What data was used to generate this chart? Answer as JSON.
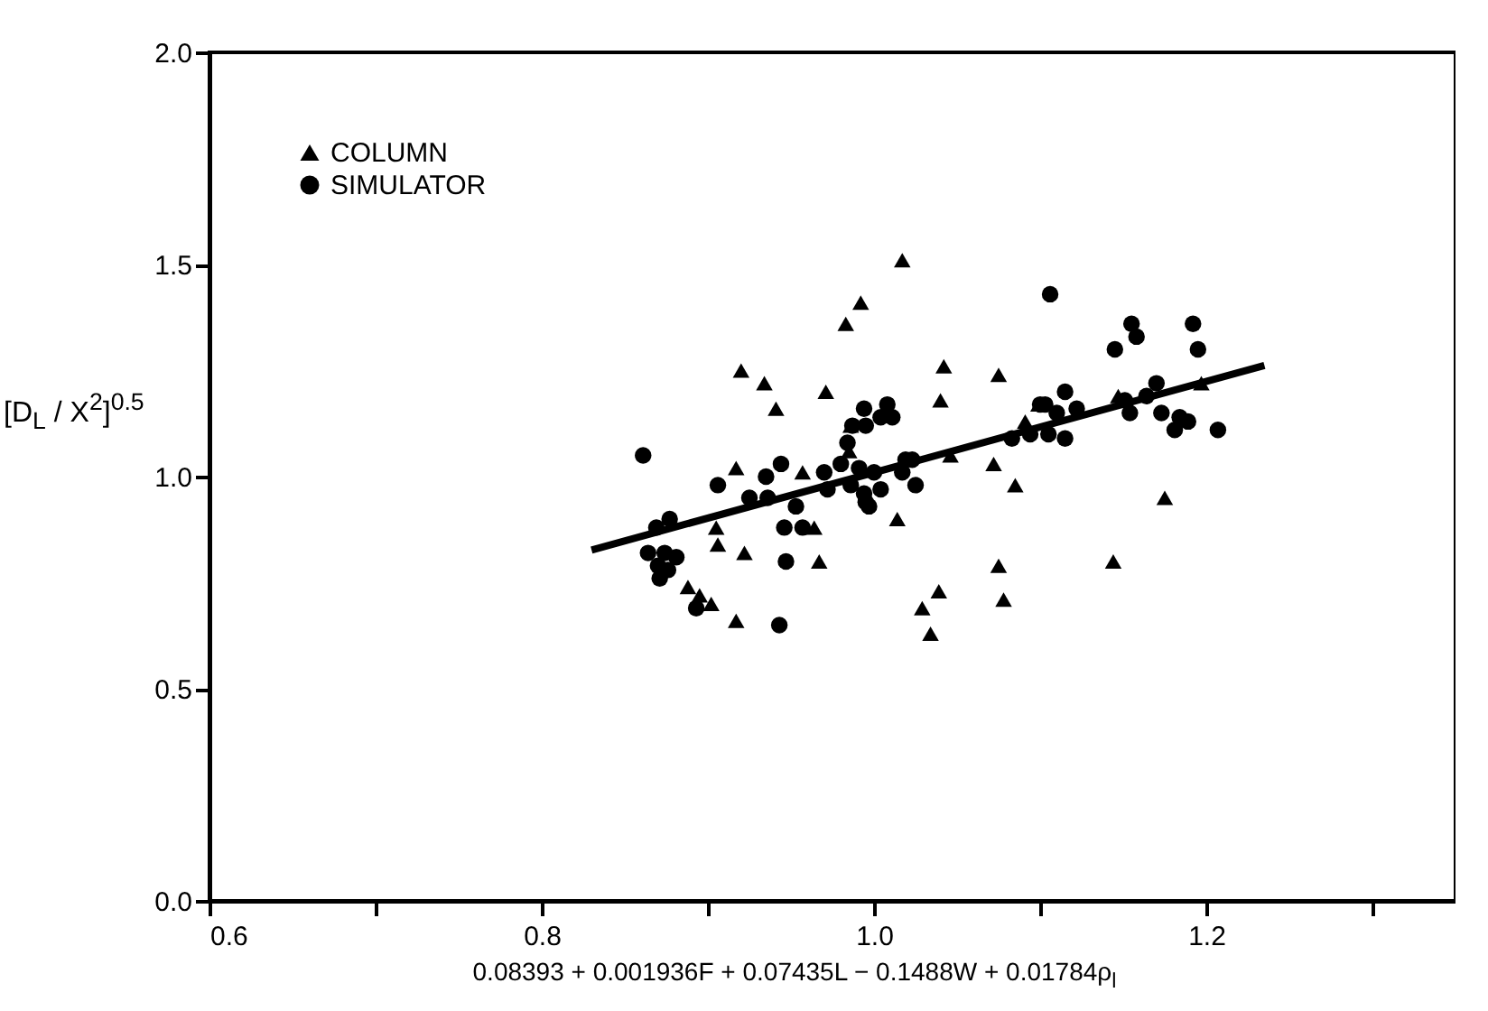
{
  "chart_data": {
    "type": "scatter",
    "xlabel": "0.08393 + 0.001936F + 0.07435L − 0.1488W + 0.01784ρ$_{l}$",
    "ylabel": "[D$_{L}$ / X$^{2}$]$^{0.5}$",
    "xlim": [
      0.6,
      1.35
    ],
    "xticks": [
      {
        "value": 0.6,
        "label": "0.6"
      },
      {
        "value": 0.7,
        "label": null
      },
      {
        "value": 0.8,
        "label": "0.8"
      },
      {
        "value": 0.9,
        "label": null
      },
      {
        "value": 1.0,
        "label": "1.0"
      },
      {
        "value": 1.1,
        "label": null
      },
      {
        "value": 1.2,
        "label": "1.2"
      },
      {
        "value": 1.3,
        "label": null
      }
    ],
    "ylim": [
      0,
      2
    ],
    "yticks": [
      {
        "value": 0,
        "label": "0.0"
      },
      {
        "value": 0.5,
        "label": "0.5"
      },
      {
        "value": 1,
        "label": "1.0"
      },
      {
        "value": 1.5,
        "label": "1.5"
      },
      {
        "value": 2,
        "label": "2.0"
      }
    ],
    "grid": false,
    "legend": "top left",
    "series": [
      {
        "name": "COLUMN",
        "type": "scatter",
        "marker": "triangle",
        "color": "#000000",
        "x": [
          1.017,
          0.992,
          0.983,
          0.92,
          0.934,
          0.941,
          0.971,
          1.042,
          1.04,
          1.075,
          1.099,
          1.091,
          1.046,
          1.072,
          1.085,
          1.014,
          1.175,
          1.144,
          1.197,
          1.075,
          1.078,
          1.039,
          1.029,
          1.034,
          0.957,
          0.964,
          0.967,
          0.922,
          0.917,
          0.905,
          0.906,
          0.917,
          0.888,
          0.895,
          0.902,
          0.986,
          0.985,
          1.147
        ],
        "values": [
          1.51,
          1.41,
          1.36,
          1.25,
          1.22,
          1.16,
          1.2,
          1.26,
          1.18,
          1.24,
          1.17,
          1.13,
          1.05,
          1.03,
          0.98,
          0.9,
          0.95,
          0.8,
          1.22,
          0.79,
          0.71,
          0.73,
          0.69,
          0.63,
          1.01,
          0.88,
          0.8,
          0.82,
          1.02,
          0.88,
          0.84,
          0.66,
          0.74,
          0.72,
          0.7,
          1.12,
          1.06,
          1.19
        ]
      },
      {
        "name": "SIMULATOR",
        "type": "scatter",
        "marker": "circle",
        "color": "#000000",
        "x": [
          0.861,
          0.906,
          0.944,
          0.935,
          0.925,
          0.936,
          0.953,
          0.946,
          0.957,
          0.947,
          0.943,
          0.869,
          0.877,
          0.864,
          0.874,
          0.881,
          0.87,
          0.871,
          0.876,
          0.893,
          0.97,
          0.972,
          0.98,
          0.984,
          0.987,
          0.994,
          0.995,
          1.004,
          1.008,
          1.011,
          0.986,
          0.994,
          0.997,
          1.004,
          0.991,
          1.0,
          1.017,
          1.025,
          1.023,
          1.106,
          1.145,
          1.155,
          1.158,
          1.192,
          1.195,
          1.207,
          1.173,
          1.184,
          1.181,
          1.189,
          1.164,
          1.17,
          1.154,
          1.151,
          1.115,
          1.11,
          1.122,
          1.115,
          1.105,
          1.094,
          1.103,
          1.083,
          1.019,
          0.995,
          1.1
        ],
        "values": [
          1.05,
          0.98,
          1.03,
          1.0,
          0.95,
          0.95,
          0.93,
          0.88,
          0.88,
          0.8,
          0.65,
          0.88,
          0.9,
          0.82,
          0.82,
          0.81,
          0.79,
          0.76,
          0.78,
          0.69,
          1.01,
          0.97,
          1.03,
          1.08,
          1.12,
          1.16,
          1.12,
          1.14,
          1.17,
          1.14,
          0.98,
          0.96,
          0.93,
          0.97,
          1.02,
          1.01,
          1.01,
          0.98,
          1.04,
          1.43,
          1.3,
          1.36,
          1.33,
          1.36,
          1.3,
          1.11,
          1.15,
          1.14,
          1.11,
          1.13,
          1.19,
          1.22,
          1.15,
          1.18,
          1.2,
          1.15,
          1.16,
          1.09,
          1.1,
          1.1,
          1.17,
          1.09,
          1.04,
          0.94,
          1.17
        ]
      },
      {
        "type": "line",
        "color": "#000000",
        "x": [
          0.83,
          1.235
        ],
        "values": [
          0.827,
          1.262
        ]
      }
    ]
  }
}
